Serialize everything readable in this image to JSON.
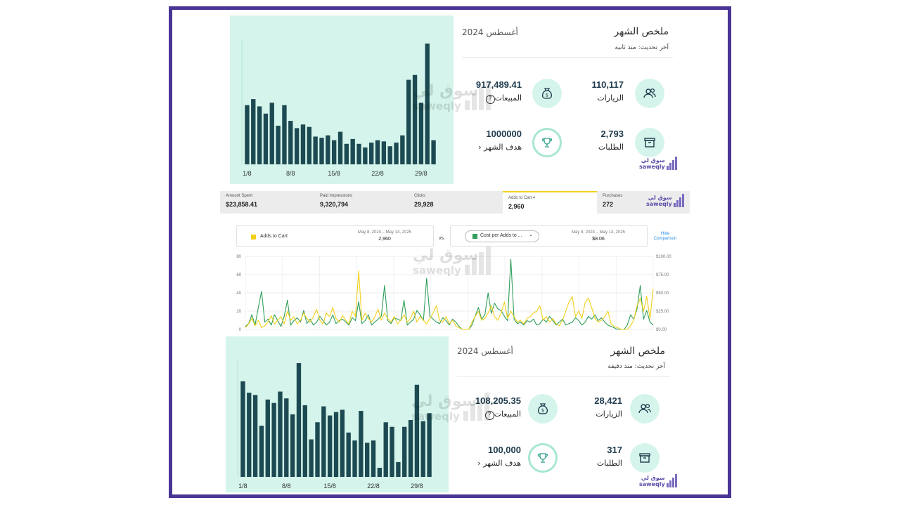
{
  "summary_top": {
    "title": "ملخص الشهر",
    "month": "أغسطس 2024",
    "updated": "آخر تحديث: منذ ثانية",
    "stats": {
      "visits": {
        "value": "110,117",
        "label": "الزيارات",
        "icon": "users-icon"
      },
      "sales": {
        "value": "917,489.41",
        "label": "المبيعات",
        "icon": "money-bag-icon"
      },
      "orders": {
        "value": "2,793",
        "label": "الطلبات",
        "icon": "box-icon"
      },
      "goal": {
        "value": "1000000",
        "label": "هدف الشهر",
        "icon": "trophy-icon"
      }
    },
    "help": "?",
    "chevron": "‹",
    "chart_data": {
      "type": "bar",
      "categories": [
        "1/8",
        "2/8",
        "3/8",
        "4/8",
        "5/8",
        "6/8",
        "7/8",
        "8/8",
        "9/8",
        "10/8",
        "11/8",
        "12/8",
        "13/8",
        "14/8",
        "15/8",
        "16/8",
        "17/8",
        "18/8",
        "19/8",
        "20/8",
        "21/8",
        "22/8",
        "23/8",
        "24/8",
        "25/8",
        "26/8",
        "27/8",
        "28/8",
        "29/8",
        "30/8",
        "31/8"
      ],
      "values": [
        49,
        54,
        48,
        42,
        51,
        32,
        49,
        36,
        30,
        33,
        31,
        23,
        22,
        24,
        20,
        27,
        17,
        21,
        17,
        14,
        18,
        20,
        19,
        15,
        18,
        24,
        70,
        74,
        51,
        100,
        20
      ],
      "x_ticks": [
        "1/8",
        "8/8",
        "15/8",
        "22/8",
        "29/8"
      ],
      "ylim": [
        0,
        100
      ]
    }
  },
  "ads": {
    "metrics": [
      {
        "label": "Amount Spent",
        "value": "$23,858.41"
      },
      {
        "label": "Paid Impressions",
        "value": "9,320,794"
      },
      {
        "label": "Clicks",
        "value": "29,928"
      },
      {
        "label": "Adds to Cart",
        "value": "2,960",
        "caret": "▾"
      },
      {
        "label": "Purchases",
        "value": "272"
      }
    ],
    "compare": {
      "left_label": "Adds to Cart",
      "left_date": "May 8, 2024 – May 14, 2025",
      "left_value": "2,960",
      "vs": "vs.",
      "right_label": "Cost per Adds to ...",
      "right_caret": "⌄",
      "right_date": "May 8, 2024 – May 14, 2025",
      "right_value": "$8.06",
      "hide": "Hide Comparison"
    },
    "colors": {
      "yellow": "#f2d01a",
      "green": "#2f9e5a"
    },
    "chart_data": {
      "type": "line",
      "y_left_ticks": [
        "80",
        "60",
        "40",
        "20",
        "0"
      ],
      "y_right_ticks": [
        "$100.00",
        "$75.00",
        "$50.00",
        "$25.00",
        "$0.00"
      ],
      "ylim_left": [
        0,
        80
      ],
      "ylim_right": [
        0,
        100
      ],
      "series": [
        {
          "name": "Adds to Cart",
          "color": "#f2d01a",
          "values": [
            2,
            6,
            12,
            4,
            10,
            2,
            4,
            8,
            15,
            6,
            10,
            14,
            6,
            20,
            10,
            14,
            6,
            10,
            18,
            12,
            8,
            14,
            22,
            10,
            6,
            18,
            14,
            24,
            12,
            8,
            15,
            10,
            6,
            20,
            14,
            64,
            10,
            18,
            12,
            8,
            14,
            22,
            10,
            18,
            12,
            8,
            14,
            6,
            10,
            16,
            8,
            12,
            20,
            8,
            14,
            10,
            6,
            12,
            18,
            26,
            10,
            8,
            14,
            6,
            10,
            4,
            2,
            0,
            0,
            0,
            8,
            14,
            20,
            10,
            12,
            18,
            26,
            14,
            10,
            18,
            30,
            12,
            20,
            14,
            8,
            10,
            6,
            12,
            14,
            18,
            20,
            26,
            10,
            14,
            8,
            12,
            6,
            4,
            10,
            20,
            30,
            36,
            14,
            20,
            12,
            30,
            34,
            24,
            12,
            8,
            10,
            14,
            20,
            6,
            3,
            2,
            0,
            0,
            0,
            4,
            10,
            26,
            34,
            20,
            36,
            12,
            44
          ]
        },
        {
          "name": "Cost per Adds to Cart",
          "color": "#2f9e5a",
          "values": [
            4,
            8,
            20,
            6,
            30,
            52,
            10,
            14,
            6,
            20,
            12,
            4,
            18,
            40,
            6,
            12,
            16,
            10,
            26,
            8,
            14,
            6,
            10,
            18,
            12,
            6,
            10,
            20,
            8,
            12,
            14,
            10,
            6,
            16,
            12,
            38,
            8,
            12,
            20,
            6,
            10,
            14,
            18,
            60,
            12,
            8,
            16,
            14,
            12,
            40,
            6,
            10,
            14,
            26,
            20,
            12,
            70,
            18,
            14,
            10,
            8,
            16,
            12,
            6,
            14,
            10,
            4,
            0,
            0,
            0,
            6,
            18,
            30,
            14,
            20,
            50,
            22,
            36,
            28,
            26,
            18,
            12,
            96,
            14,
            8,
            10,
            6,
            12,
            10,
            14,
            6,
            8,
            14,
            10,
            18,
            12,
            6,
            10,
            14,
            6,
            8,
            10,
            16,
            12,
            6,
            10,
            18,
            14,
            20,
            12,
            16,
            10,
            6,
            4,
            2,
            0,
            0,
            0,
            6,
            20,
            14,
            28,
            60,
            14,
            26,
            10,
            6
          ]
        }
      ]
    }
  },
  "summary_bottom": {
    "title": "ملخص الشهر",
    "month": "أغسطس 2024",
    "updated": "آخر تحديث: منذ دقيقة",
    "stats": {
      "visits": {
        "value": "28,421",
        "label": "الزيارات",
        "icon": "users-icon"
      },
      "sales": {
        "value": "108,205.35",
        "label": "المبيعات",
        "icon": "money-bag-icon"
      },
      "orders": {
        "value": "317",
        "label": "الطلبات",
        "icon": "box-icon"
      },
      "goal": {
        "value": "100,000",
        "label": "هدف الشهر",
        "icon": "trophy-icon"
      }
    },
    "help": "?",
    "chevron": "‹",
    "chart_data": {
      "type": "bar",
      "categories": [
        "1/8",
        "2/8",
        "3/8",
        "4/8",
        "5/8",
        "6/8",
        "7/8",
        "8/8",
        "9/8",
        "10/8",
        "11/8",
        "12/8",
        "13/8",
        "14/8",
        "15/8",
        "16/8",
        "17/8",
        "18/8",
        "19/8",
        "20/8",
        "21/8",
        "22/8",
        "23/8",
        "24/8",
        "25/8",
        "26/8",
        "27/8",
        "28/8",
        "29/8",
        "30/8",
        "31/8"
      ],
      "values": [
        84,
        74,
        72,
        45,
        68,
        65,
        75,
        69,
        55,
        100,
        63,
        33,
        48,
        62,
        54,
        57,
        59,
        39,
        32,
        58,
        30,
        32,
        8,
        48,
        44,
        13,
        44,
        50,
        81,
        49,
        56
      ],
      "x_ticks": [
        "1/8",
        "8/8",
        "15/8",
        "22/8",
        "29/8"
      ],
      "ylim": [
        0,
        100
      ]
    }
  },
  "watermark": {
    "arabic": "سوق لي",
    "latin": "saweqly"
  },
  "logo": {
    "arabic": "سوق لي",
    "latin": "saweqly"
  }
}
